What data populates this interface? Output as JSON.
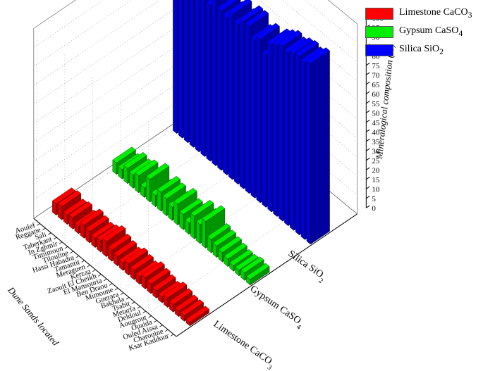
{
  "chart_data": {
    "type": "bar",
    "subtype": "3d-bar",
    "title": "",
    "xlabel": "Dune Sands located",
    "zlabel": "Mineralogical composition (%)",
    "zlim": [
      0,
      100
    ],
    "z_ticks": [
      "0",
      "5",
      "10",
      "15",
      "20",
      "25",
      "30",
      "35",
      "40",
      "45",
      "50",
      "55",
      "60",
      "65",
      "70",
      "75",
      "80",
      "85",
      "90",
      "95",
      "100"
    ],
    "series_labels": [
      {
        "main": "Limestone CaCO",
        "sub": "3"
      },
      {
        "main": "Gypsum CaSO",
        "sub": "4"
      },
      {
        "main": "Silica SiO",
        "sub": "2"
      }
    ],
    "categories": [
      "Aoulef",
      "Reggane",
      "Sali",
      "Taberkant",
      "In Zghmir",
      "Timimoun",
      "Tilouline",
      "Hassi Habadra",
      "Tamantit",
      "Meraguen",
      "Kerzaz",
      "Zaouit El Cheikh",
      "El Mansouria",
      "Ben Draou",
      "Mimoune",
      "Guerara",
      "Bakhala",
      "Tsabit",
      "Metarfa",
      "Deldoul",
      "Aougrout",
      "Ouaida",
      "Ouled Aissa",
      "Charouine",
      "Ksar Kaddour"
    ],
    "series": [
      {
        "name": "Limestone CaCO3",
        "color": "#ff0000",
        "values": [
          6,
          7,
          5,
          6,
          4,
          7,
          6,
          5,
          6,
          8,
          6,
          5,
          4,
          6,
          5,
          4,
          6,
          5,
          4,
          3,
          5,
          4,
          3,
          3,
          2
        ]
      },
      {
        "name": "Gypsum CaSO4",
        "color": "#00ee00",
        "values": [
          6,
          5,
          8,
          7,
          9,
          5,
          12,
          6,
          10,
          9,
          7,
          11,
          8,
          6,
          12,
          10,
          14,
          7,
          6,
          5,
          4,
          3,
          3,
          4,
          3
        ]
      },
      {
        "name": "Silica SiO2",
        "color": "#0000ff",
        "values": [
          88,
          88,
          87,
          87,
          87,
          88,
          82,
          89,
          84,
          83,
          87,
          84,
          88,
          88,
          83,
          86,
          80,
          88,
          90,
          92,
          91,
          93,
          94,
          93,
          95
        ]
      }
    ],
    "grid": true,
    "legend_position": "top-right"
  }
}
